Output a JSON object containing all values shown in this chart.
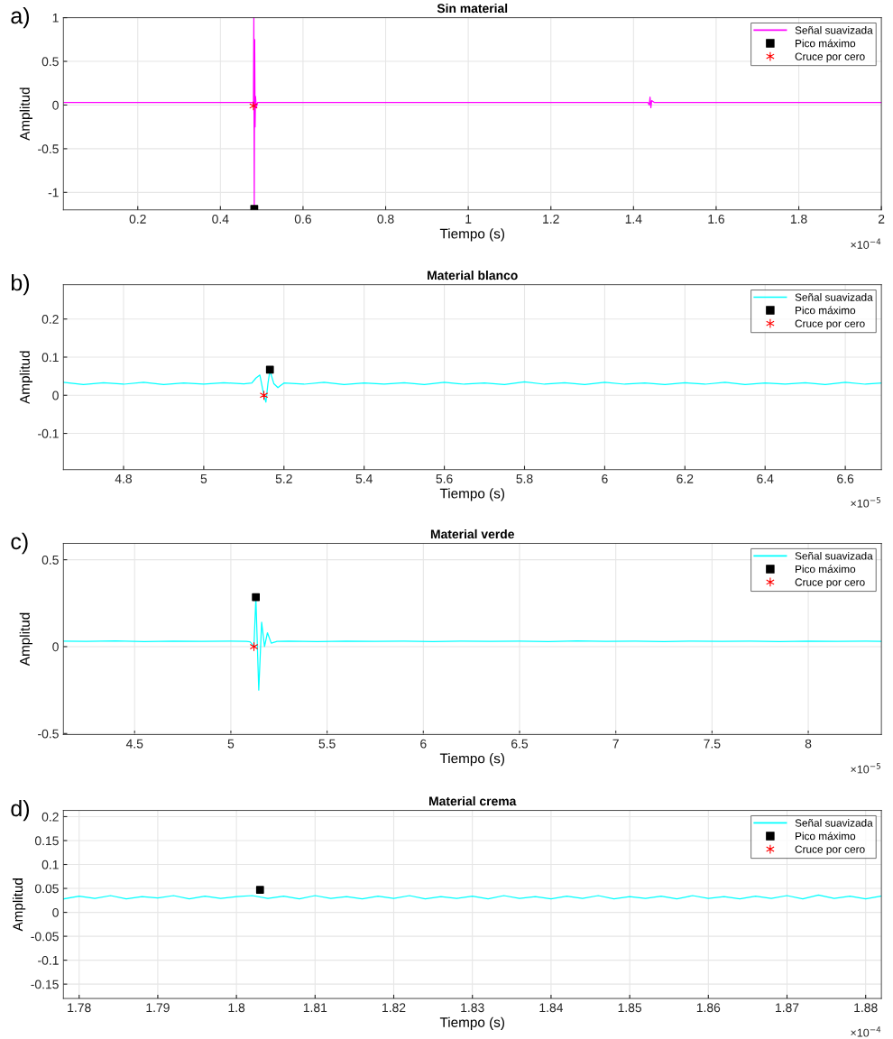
{
  "chart_data": [
    {
      "type": "line",
      "title": "Sin material",
      "xlabel": "Tiempo (s)",
      "ylabel": "Amplitud",
      "annotations": [
        "a)",
        "×10$^{−4}$"
      ],
      "xlim": [
        0.02,
        2
      ],
      "ylim": [
        -1.2,
        1.0
      ],
      "xticks": [
        0.2,
        0.4,
        0.6,
        0.8,
        1,
        1.2,
        1.4,
        1.6,
        1.8,
        2
      ],
      "yticks": [
        -1,
        -0.5,
        0,
        0.5,
        1
      ],
      "grid": true,
      "legend": "top right",
      "series": [
        {
          "name": "Señal suavizada",
          "color": "#ff00ff",
          "x": [
            0.02,
            0.1,
            0.2,
            0.3,
            0.4,
            0.47,
            0.478,
            0.48,
            0.481,
            0.482,
            0.483,
            0.484,
            0.485,
            0.487,
            0.49,
            0.5,
            0.6,
            0.7,
            0.8,
            0.9,
            1.0,
            1.1,
            1.2,
            1.3,
            1.4,
            1.435,
            1.438,
            1.44,
            1.442,
            1.444,
            1.45,
            1.5,
            1.6,
            1.7,
            1.8,
            1.9,
            2.0
          ],
          "values": [
            0.03,
            0.03,
            0.03,
            0.03,
            0.03,
            0.03,
            0.03,
            0.0,
            1.0,
            -1.2,
            0.75,
            -0.25,
            0.1,
            -0.03,
            0.03,
            0.03,
            0.03,
            0.03,
            0.03,
            0.03,
            0.03,
            0.03,
            0.03,
            0.03,
            0.03,
            0.03,
            0.0,
            0.09,
            -0.03,
            0.05,
            0.03,
            0.03,
            0.03,
            0.03,
            0.03,
            0.03,
            0.03
          ]
        },
        {
          "name": "Pico máximo",
          "type": "scatter",
          "marker": "square",
          "color": "#000000",
          "x": [
            0.482
          ],
          "values": [
            -1.19
          ]
        },
        {
          "name": "Cruce por cero",
          "type": "scatter",
          "marker": "cross",
          "color": "#ff0000",
          "x": [
            0.48
          ],
          "values": [
            -0.01
          ]
        }
      ]
    },
    {
      "type": "line",
      "title": "Material blanco",
      "xlabel": "Tiempo (s)",
      "ylabel": "Amplitud",
      "annotations": [
        "b)",
        "×10$^{−5}$"
      ],
      "xlim": [
        4.65,
        6.69
      ],
      "ylim": [
        -0.195,
        0.29
      ],
      "xticks": [
        4.8,
        5,
        5.2,
        5.4,
        5.6,
        5.8,
        6,
        6.2,
        6.4,
        6.6
      ],
      "yticks": [
        -0.1,
        0,
        0.1,
        0.2
      ],
      "grid": true,
      "legend": "top right",
      "series": [
        {
          "name": "Señal suavizada",
          "color": "#00ffff",
          "x": [
            4.65,
            4.7,
            4.75,
            4.8,
            4.85,
            4.9,
            4.95,
            5.0,
            5.05,
            5.1,
            5.12,
            5.13,
            5.14,
            5.15,
            5.155,
            5.16,
            5.165,
            5.175,
            5.185,
            5.19,
            5.2,
            5.25,
            5.3,
            5.35,
            5.4,
            5.45,
            5.5,
            5.55,
            5.6,
            5.65,
            5.7,
            5.75,
            5.8,
            5.85,
            5.9,
            5.95,
            6.0,
            6.05,
            6.1,
            6.15,
            6.2,
            6.25,
            6.3,
            6.35,
            6.4,
            6.45,
            6.5,
            6.55,
            6.6,
            6.65,
            6.69
          ],
          "values": [
            0.034,
            0.028,
            0.033,
            0.029,
            0.034,
            0.028,
            0.032,
            0.029,
            0.033,
            0.03,
            0.032,
            0.045,
            0.053,
            0.0,
            -0.018,
            0.03,
            0.065,
            0.03,
            0.02,
            0.024,
            0.032,
            0.029,
            0.034,
            0.028,
            0.032,
            0.029,
            0.033,
            0.028,
            0.034,
            0.029,
            0.032,
            0.028,
            0.035,
            0.029,
            0.033,
            0.028,
            0.034,
            0.029,
            0.032,
            0.028,
            0.033,
            0.029,
            0.034,
            0.028,
            0.032,
            0.029,
            0.033,
            0.028,
            0.034,
            0.029,
            0.032
          ]
        },
        {
          "name": "Pico máximo",
          "type": "scatter",
          "marker": "square",
          "color": "#000000",
          "x": [
            5.165
          ],
          "values": [
            0.067
          ]
        },
        {
          "name": "Cruce por cero",
          "type": "scatter",
          "marker": "cross",
          "color": "#ff0000",
          "x": [
            5.15
          ],
          "values": [
            0.0
          ]
        }
      ]
    },
    {
      "type": "line",
      "title": "Material verde",
      "xlabel": "Tiempo (s)",
      "ylabel": "Amplitud",
      "annotations": [
        "c)",
        "×10$^{−5}$"
      ],
      "xlim": [
        4.13,
        8.38
      ],
      "ylim": [
        -0.506,
        0.594
      ],
      "xticks": [
        4.5,
        5,
        5.5,
        6,
        6.5,
        7,
        7.5,
        8
      ],
      "yticks": [
        -0.5,
        0,
        0.5
      ],
      "grid": true,
      "legend": "top right",
      "series": [
        {
          "name": "Señal suavizada",
          "color": "#00ffff",
          "x": [
            4.13,
            4.25,
            4.4,
            4.55,
            4.7,
            4.85,
            5.0,
            5.08,
            5.1,
            5.11,
            5.12,
            5.13,
            5.145,
            5.16,
            5.175,
            5.19,
            5.21,
            5.24,
            5.3,
            5.45,
            5.6,
            5.75,
            5.9,
            6.05,
            6.2,
            6.35,
            6.5,
            6.65,
            6.8,
            6.95,
            7.1,
            7.25,
            7.4,
            7.55,
            7.7,
            7.85,
            8.0,
            8.15,
            8.3,
            8.38
          ],
          "values": [
            0.032,
            0.03,
            0.033,
            0.029,
            0.032,
            0.03,
            0.031,
            0.03,
            0.028,
            0.015,
            0.0,
            0.28,
            -0.25,
            0.14,
            0.0,
            0.08,
            0.02,
            0.03,
            0.031,
            0.029,
            0.032,
            0.03,
            0.031,
            0.029,
            0.032,
            0.03,
            0.031,
            0.029,
            0.033,
            0.03,
            0.031,
            0.029,
            0.032,
            0.03,
            0.031,
            0.029,
            0.032,
            0.03,
            0.031,
            0.03
          ]
        },
        {
          "name": "Pico máximo",
          "type": "scatter",
          "marker": "square",
          "color": "#000000",
          "x": [
            5.13
          ],
          "values": [
            0.285
          ]
        },
        {
          "name": "Cruce por cero",
          "type": "scatter",
          "marker": "cross",
          "color": "#ff0000",
          "x": [
            5.12
          ],
          "values": [
            0.0
          ]
        }
      ]
    },
    {
      "type": "line",
      "title": "Material crema",
      "xlabel": "Tiempo (s)",
      "ylabel": "Amplitud",
      "annotations": [
        "d)",
        "×10$^{−4}$"
      ],
      "xlim": [
        1.778,
        1.882
      ],
      "ylim": [
        -0.18,
        0.213
      ],
      "xticks": [
        1.78,
        1.79,
        1.8,
        1.81,
        1.82,
        1.83,
        1.84,
        1.85,
        1.86,
        1.87,
        1.88
      ],
      "yticks": [
        -0.15,
        -0.1,
        -0.05,
        0,
        0.05,
        0.1,
        0.15,
        0.2
      ],
      "grid": true,
      "legend": "top right",
      "series": [
        {
          "name": "Señal suavizada",
          "color": "#00ffff",
          "x": [
            1.778,
            1.78,
            1.782,
            1.784,
            1.786,
            1.788,
            1.79,
            1.792,
            1.794,
            1.796,
            1.798,
            1.8,
            1.802,
            1.804,
            1.806,
            1.808,
            1.81,
            1.812,
            1.814,
            1.816,
            1.818,
            1.82,
            1.822,
            1.824,
            1.826,
            1.828,
            1.83,
            1.832,
            1.834,
            1.836,
            1.838,
            1.84,
            1.842,
            1.844,
            1.846,
            1.848,
            1.85,
            1.852,
            1.854,
            1.856,
            1.858,
            1.86,
            1.862,
            1.864,
            1.866,
            1.868,
            1.87,
            1.872,
            1.874,
            1.876,
            1.878,
            1.88,
            1.882
          ],
          "values": [
            0.028,
            0.034,
            0.029,
            0.035,
            0.028,
            0.033,
            0.03,
            0.035,
            0.028,
            0.034,
            0.029,
            0.033,
            0.035,
            0.029,
            0.034,
            0.028,
            0.035,
            0.029,
            0.033,
            0.028,
            0.034,
            0.029,
            0.035,
            0.028,
            0.033,
            0.029,
            0.034,
            0.028,
            0.035,
            0.029,
            0.033,
            0.028,
            0.034,
            0.029,
            0.035,
            0.028,
            0.033,
            0.029,
            0.034,
            0.028,
            0.035,
            0.029,
            0.033,
            0.028,
            0.034,
            0.029,
            0.035,
            0.028,
            0.036,
            0.029,
            0.034,
            0.028,
            0.034
          ]
        },
        {
          "name": "Pico máximo",
          "type": "scatter",
          "marker": "square",
          "color": "#000000",
          "x": [
            1.803
          ],
          "values": [
            0.047
          ]
        },
        {
          "name": "Cruce por cero",
          "type": "scatter",
          "marker": "cross",
          "color": "#ff0000"
        }
      ]
    }
  ]
}
